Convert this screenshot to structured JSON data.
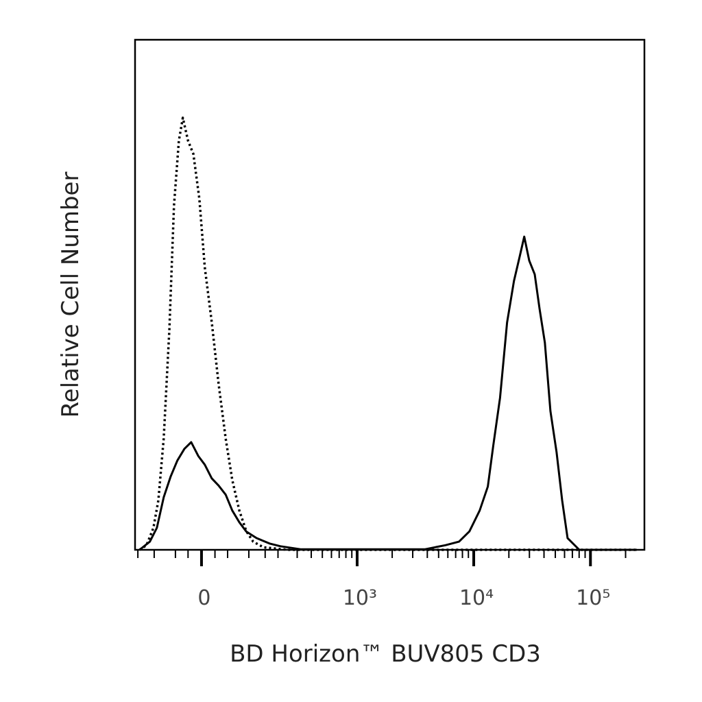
{
  "chart_data": {
    "type": "line",
    "xlabel": "BD Horizon™ BUV805 CD3",
    "ylabel": "Relative Cell Number",
    "xscale": "biexponential",
    "xlim": [
      -160,
      290000
    ],
    "xticks": [
      0,
      {
        "value": 1000,
        "label": "10³"
      },
      {
        "value": 10000,
        "label": "10⁴"
      },
      {
        "value": 100000,
        "label": "10⁵"
      }
    ],
    "xminorticks": [
      -150,
      -100,
      -50,
      -25,
      25,
      50,
      100,
      150,
      200,
      300,
      400,
      500,
      600,
      700,
      800,
      900,
      2000,
      3000,
      4000,
      5000,
      6000,
      7000,
      8000,
      9000,
      20000,
      30000,
      40000,
      50000,
      60000,
      70000,
      80000,
      90000,
      200000
    ],
    "ylim": [
      0,
      100
    ],
    "grid": false,
    "series": [
      {
        "color": "#000000",
        "style": "dotted",
        "x": [
          -144,
          -122,
          -102,
          -89,
          -76,
          -63,
          -53,
          -43,
          -35,
          -25,
          -15,
          -4,
          6,
          19,
          32,
          46,
          60,
          76,
          93,
          112,
          144,
          245,
          250000
        ],
        "values": [
          0,
          0.9,
          4.3,
          9.7,
          21.8,
          43.3,
          67.5,
          80.2,
          84.7,
          80.2,
          77.6,
          68.8,
          55.4,
          44.6,
          32.5,
          21.8,
          13.7,
          7.7,
          3.7,
          1.6,
          0.5,
          0,
          0
        ]
      },
      {
        "color": "#000000",
        "style": "solid",
        "x": [
          -144,
          -112,
          -93,
          -76,
          -60,
          -46,
          -32,
          -19,
          -6,
          6,
          19,
          32,
          46,
          60,
          76,
          93,
          122,
          168,
          211,
          325,
          3800,
          5710,
          7480,
          9180,
          11240,
          13200,
          14700,
          16800,
          19300,
          22100,
          24700,
          27100,
          29900,
          33300,
          36600,
          40700,
          45400,
          51300,
          57200,
          63700,
          80200,
          250000
        ],
        "values": [
          0,
          1.6,
          4.3,
          10.3,
          14.4,
          17.5,
          19.8,
          21.1,
          18.4,
          16.7,
          14.0,
          12.6,
          10.8,
          7.7,
          5.4,
          3.6,
          2.3,
          1.2,
          0.7,
          0.1,
          0.1,
          0.9,
          1.6,
          3.6,
          7.7,
          12.4,
          20.4,
          29.8,
          44.6,
          52.7,
          57.4,
          61.4,
          56.7,
          54.0,
          47.3,
          40.6,
          27.2,
          19.1,
          9.7,
          2.3,
          0,
          0
        ]
      }
    ]
  }
}
